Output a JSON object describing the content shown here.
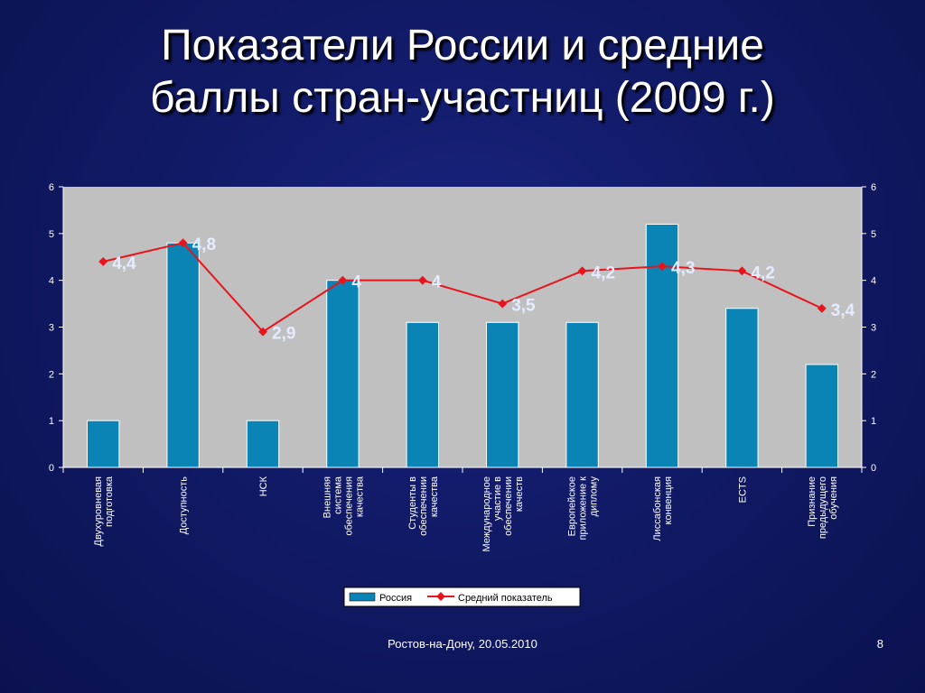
{
  "slide": {
    "title_lines": [
      "Показатели России и средние",
      "баллы стран-участниц (2009 г.)"
    ],
    "footer": "Ростов-на-Дону, 20.05.2010",
    "page_number": "8"
  },
  "colors": {
    "background": "#111a66",
    "plot_area": "#c0c0c0",
    "bar": "#0a84b4",
    "line": "#e8141c"
  },
  "chart_data": {
    "type": "bar",
    "title": "",
    "categories": [
      [
        "Двухуровневая",
        "подготовка"
      ],
      [
        "Доступность"
      ],
      [
        "НСК"
      ],
      [
        "Внешняя",
        "система",
        "обеспечения",
        "качества"
      ],
      [
        "Студенты в",
        "обеспечении",
        "качества"
      ],
      [
        "Международное",
        "участие в",
        "обеспечении",
        "качеств"
      ],
      [
        "Европейское",
        "приложение к",
        "диплому"
      ],
      [
        "Лиссабонская",
        "конвенция"
      ],
      [
        "ECTS"
      ],
      [
        "Признание",
        "предыдущего",
        "обучения"
      ]
    ],
    "series": [
      {
        "name": "Россия",
        "kind": "bar",
        "values": [
          1,
          4.8,
          1,
          4,
          3.1,
          3.1,
          3.1,
          5.2,
          3.4,
          2.2
        ]
      },
      {
        "name": "Средний показатель",
        "kind": "line",
        "values": [
          4.4,
          4.8,
          2.9,
          4,
          4,
          3.5,
          4.2,
          4.3,
          4.2,
          3.4
        ],
        "data_labels": [
          "4,4",
          "4,8",
          "2,9",
          "4",
          "4",
          "3,5",
          "4,2",
          "4,3",
          "4,2",
          "3,4"
        ]
      }
    ],
    "y_ticks": [
      "0",
      "1",
      "2",
      "3",
      "4",
      "5",
      "6"
    ],
    "ylim": [
      0,
      6
    ],
    "secondary_y_ticks": [
      "0",
      "1",
      "2",
      "3",
      "4",
      "5",
      "6"
    ],
    "legend_position": "bottom",
    "grid": false
  }
}
